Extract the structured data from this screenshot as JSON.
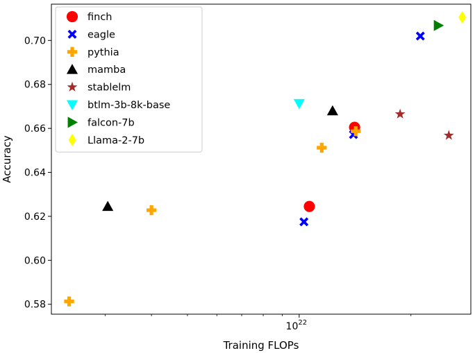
{
  "chart_data": {
    "type": "scatter",
    "title": "",
    "xlabel": "Training FLOPs",
    "ylabel": "Accuracy",
    "xscale": "log",
    "xlim": [
      2.15e+21,
      2.9e+22
    ],
    "ylim": [
      0.5755,
      0.7165
    ],
    "grid": false,
    "legend_position": "top-left",
    "x_ticks": [
      {
        "value": 1e+22,
        "label": "10",
        "exponent": "22"
      }
    ],
    "y_ticks": [
      {
        "value": 0.58,
        "label": "0.58"
      },
      {
        "value": 0.6,
        "label": "0.60"
      },
      {
        "value": 0.62,
        "label": "0.62"
      },
      {
        "value": 0.64,
        "label": "0.64"
      },
      {
        "value": 0.66,
        "label": "0.66"
      },
      {
        "value": 0.68,
        "label": "0.68"
      },
      {
        "value": 0.7,
        "label": "0.70"
      }
    ],
    "series": [
      {
        "name": "finch",
        "marker": "circle",
        "color": "#ff0000",
        "points": [
          {
            "x": 1.065e+22,
            "y": 0.6245
          },
          {
            "x": 1.41e+22,
            "y": 0.6605
          }
        ]
      },
      {
        "name": "eagle",
        "marker": "x-bold",
        "color": "#0000ff",
        "points": [
          {
            "x": 1.03e+22,
            "y": 0.6175
          },
          {
            "x": 1.4e+22,
            "y": 0.6572
          },
          {
            "x": 2.12e+22,
            "y": 0.702
          }
        ]
      },
      {
        "name": "pythia",
        "marker": "plus-bold",
        "color": "#ffa500",
        "points": [
          {
            "x": 2.4e+21,
            "y": 0.5813
          },
          {
            "x": 4e+21,
            "y": 0.6228
          },
          {
            "x": 1.15e+22,
            "y": 0.6512
          },
          {
            "x": 1.42e+22,
            "y": 0.6587
          }
        ]
      },
      {
        "name": "mamba",
        "marker": "triangle-up",
        "color": "#000000",
        "points": [
          {
            "x": 3.05e+21,
            "y": 0.6245
          },
          {
            "x": 1.23e+22,
            "y": 0.668
          }
        ]
      },
      {
        "name": "stablelm",
        "marker": "star",
        "color": "#a52a2a",
        "points": [
          {
            "x": 1.87e+22,
            "y": 0.6665
          },
          {
            "x": 2.53e+22,
            "y": 0.6568
          }
        ]
      },
      {
        "name": "btlm-3b-8k-base",
        "marker": "triangle-down",
        "color": "#00ffff",
        "points": [
          {
            "x": 1e+22,
            "y": 0.6713
          }
        ]
      },
      {
        "name": "falcon-7b",
        "marker": "triangle-right",
        "color": "#008000",
        "points": [
          {
            "x": 2.37e+22,
            "y": 0.7068
          }
        ]
      },
      {
        "name": "Llama-2-7b",
        "marker": "thin-diamond",
        "color": "#ffff00",
        "points": [
          {
            "x": 2.75e+22,
            "y": 0.7105
          }
        ]
      }
    ]
  }
}
